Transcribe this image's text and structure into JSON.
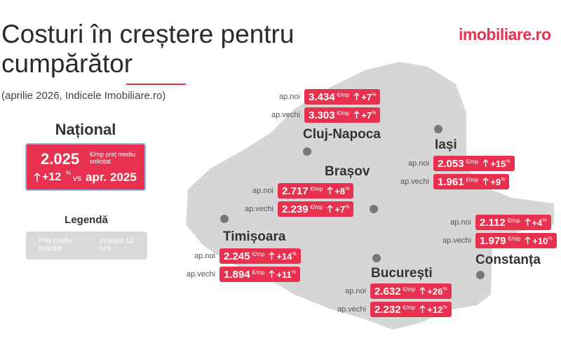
{
  "header": {
    "title": "Costuri în creștere pentru cumpărător",
    "subtitle": "(aprilie 2026, Indicele Imobiliare.ro)",
    "logo": "imobiliare.ro"
  },
  "units": {
    "price": "€/mp",
    "change": "%"
  },
  "national": {
    "title": "Național",
    "price": "2.025",
    "unit": "€/mp preț mediu solicitat",
    "change": "+12",
    "vs": "vs",
    "period": "apr. 2025"
  },
  "legend": {
    "title": "Legendă",
    "items": [
      "Preț mediu solicitat",
      "evoluție 12 luni"
    ]
  },
  "cities": [
    {
      "name": "Cluj-Napoca",
      "rows": [
        {
          "label": "ap.noi",
          "price": "3.434",
          "change": "+7"
        },
        {
          "label": "ap.vechi",
          "price": "3.303",
          "change": "+7"
        }
      ]
    },
    {
      "name": "Iași",
      "rows": [
        {
          "label": "ap.noi",
          "price": "2.053",
          "change": "+15"
        },
        {
          "label": "ap.vechi",
          "price": "1.961",
          "change": "+9"
        }
      ]
    },
    {
      "name": "Brașov",
      "rows": [
        {
          "label": "ap.noi",
          "price": "2.717",
          "change": "+8"
        },
        {
          "label": "ap.vechi",
          "price": "2.239",
          "change": "+7"
        }
      ]
    },
    {
      "name": "Timișoara",
      "rows": [
        {
          "label": "ap.noi",
          "price": "2.245",
          "change": "+14"
        },
        {
          "label": "ap.vechi",
          "price": "1.894",
          "change": "+11"
        }
      ]
    },
    {
      "name": "Constanța",
      "rows": [
        {
          "label": "ap.noi",
          "price": "2.112",
          "change": "+4"
        },
        {
          "label": "ap.vechi",
          "price": "1.979",
          "change": "+10"
        }
      ]
    },
    {
      "name": "București",
      "rows": [
        {
          "label": "ap.noi",
          "price": "2.632",
          "change": "+26"
        },
        {
          "label": "ap.vechi",
          "price": "2.232",
          "change": "+12"
        }
      ]
    }
  ]
}
